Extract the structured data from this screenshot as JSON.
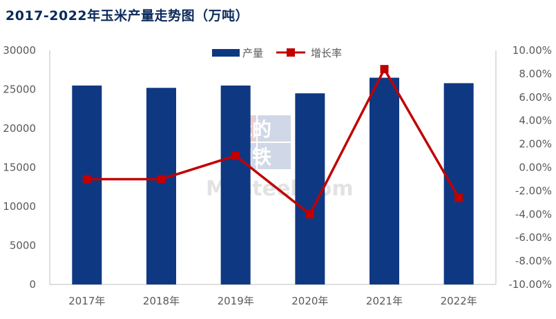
{
  "title": "2017-2022年玉米产量走势图（万吨）",
  "legend": {
    "bar_label": "产量",
    "line_label": "增长率"
  },
  "watermark": {
    "line1": "我的",
    "line2": "钢铁",
    "text": "Mysteel.com"
  },
  "colors": {
    "bar": "#0f3883",
    "line": "#c00000",
    "axis": "#bfbfbf",
    "title": "#0b2a5b"
  },
  "chart_data": {
    "type": "bar",
    "categories": [
      "2017年",
      "2018年",
      "2019年",
      "2020年",
      "2021年",
      "2022年"
    ],
    "series": [
      {
        "name": "产量",
        "type": "bar",
        "axis": "left",
        "values": [
          25500,
          25200,
          25500,
          24500,
          26500,
          25800
        ]
      },
      {
        "name": "增长率",
        "type": "line",
        "axis": "right",
        "values": [
          -1.0,
          -1.0,
          1.0,
          -4.0,
          8.4,
          -2.6
        ]
      }
    ],
    "ylim_left": [
      0,
      30000
    ],
    "yticks_left": [
      "0",
      "5000",
      "10000",
      "15000",
      "20000",
      "25000",
      "30000"
    ],
    "ylim_right": [
      -10,
      10
    ],
    "yticks_right": [
      "-10.00%",
      "-8.00%",
      "-6.00%",
      "-4.00%",
      "-2.00%",
      "0.00%",
      "2.00%",
      "4.00%",
      "6.00%",
      "8.00%",
      "10.00%"
    ],
    "grid": false,
    "legend_position": "top"
  }
}
